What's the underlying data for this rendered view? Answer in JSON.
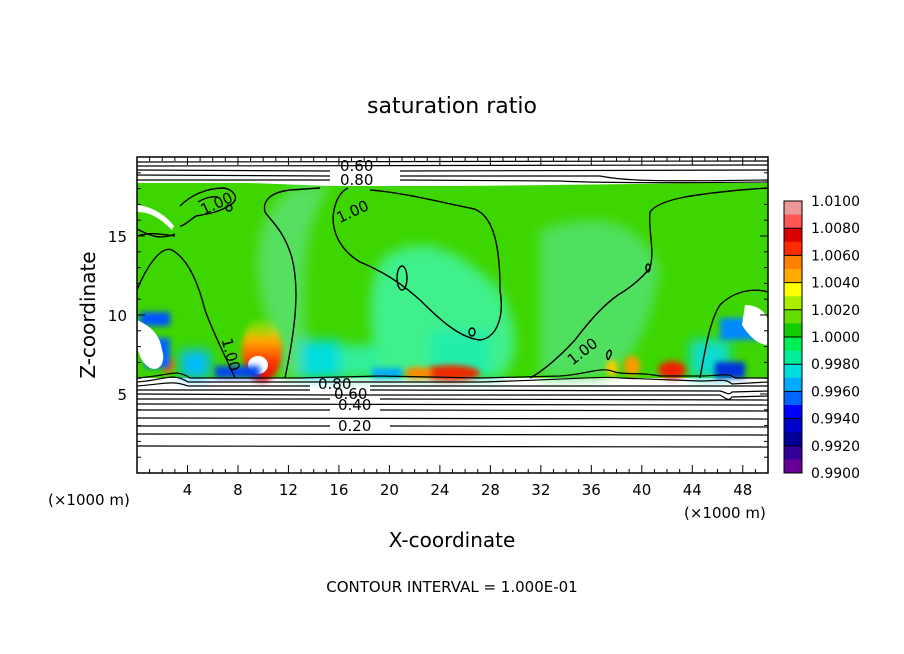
{
  "chart_data": {
    "type": "heatmap",
    "title": "saturation ratio",
    "xlabel": "X-coordinate",
    "ylabel": "Z-coordinate",
    "x_unit": "(×1000 m)",
    "z_unit": "(×1000 m)",
    "xlim": [
      0,
      50
    ],
    "ylim": [
      0,
      20
    ],
    "x_ticks": [
      4,
      8,
      12,
      16,
      20,
      24,
      28,
      32,
      36,
      40,
      44,
      48
    ],
    "y_ticks": [
      5,
      10,
      15
    ],
    "footnote": "CONTOUR INTERVAL = 1.000E-01",
    "colorbar": {
      "min": 0.99,
      "max": 1.01,
      "labels": [
        "1.0100",
        "1.0080",
        "1.0060",
        "1.0040",
        "1.0020",
        "1.0000",
        "0.9980",
        "0.9960",
        "0.9940",
        "0.9920",
        "0.9900"
      ],
      "colors": [
        "#ee9999",
        "#ff5555",
        "#dd0000",
        "#ff2a00",
        "#ff7f00",
        "#ffaa00",
        "#ffff00",
        "#aaee00",
        "#66dd00",
        "#11cc00",
        "#00ee55",
        "#00ee99",
        "#00dddd",
        "#00aaff",
        "#0066ff",
        "#0000ff",
        "#0000cc",
        "#000099",
        "#330099",
        "#660099"
      ]
    },
    "contour_labels": [
      "0.60",
      "0.80",
      "1.00",
      "1.00",
      "1.00",
      "1.00",
      "0.80",
      "0.60",
      "0.40",
      "0.20"
    ]
  }
}
